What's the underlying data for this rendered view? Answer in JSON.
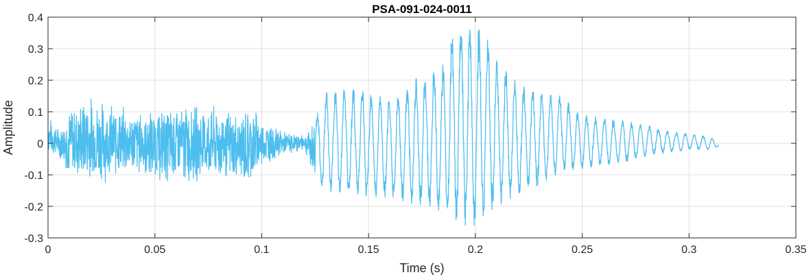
{
  "chart_data": {
    "type": "line",
    "title": "PSA-091-024-0011",
    "xlabel": "Time (s)",
    "ylabel": "Amplitude",
    "xlim": [
      0,
      0.35
    ],
    "ylim": [
      -0.3,
      0.4
    ],
    "grid": true,
    "xticks": [
      0,
      0.05,
      0.1,
      0.15,
      0.2,
      0.25,
      0.3,
      0.35
    ],
    "xtick_labels": [
      "0",
      "0.05",
      "0.1",
      "0.15",
      "0.2",
      "0.25",
      "0.3",
      "0.35"
    ],
    "yticks": [
      -0.3,
      -0.2,
      -0.1,
      0,
      0.1,
      0.2,
      0.3,
      0.4
    ],
    "ytick_labels": [
      "-0.3",
      "-0.2",
      "-0.1",
      "0",
      "0.1",
      "0.2",
      "0.3",
      "0.4"
    ],
    "series": [
      {
        "color": "#4dbeee",
        "x": [
          0.0,
          0.005,
          0.01,
          0.02,
          0.03,
          0.04,
          0.05,
          0.06,
          0.07,
          0.08,
          0.09,
          0.095,
          0.1,
          0.105,
          0.11,
          0.115,
          0.12,
          0.125,
          0.13,
          0.14,
          0.15,
          0.16,
          0.17,
          0.18,
          0.185,
          0.19,
          0.195,
          0.2,
          0.205,
          0.21,
          0.22,
          0.23,
          0.24,
          0.25,
          0.26,
          0.27,
          0.28,
          0.29,
          0.3,
          0.31,
          0.314
        ],
        "upper": [
          0.09,
          0.05,
          0.12,
          0.16,
          0.13,
          0.11,
          0.11,
          0.13,
          0.13,
          0.12,
          0.1,
          0.14,
          0.08,
          0.06,
          0.04,
          0.03,
          0.03,
          0.08,
          0.16,
          0.17,
          0.17,
          0.13,
          0.2,
          0.22,
          0.25,
          0.37,
          0.38,
          0.36,
          0.36,
          0.26,
          0.19,
          0.16,
          0.15,
          0.09,
          0.08,
          0.07,
          0.06,
          0.04,
          0.03,
          0.02,
          0.0
        ],
        "lower": [
          -0.03,
          -0.05,
          -0.11,
          -0.14,
          -0.12,
          -0.1,
          -0.12,
          -0.14,
          -0.13,
          -0.12,
          -0.13,
          -0.15,
          -0.08,
          -0.06,
          -0.04,
          -0.03,
          -0.02,
          -0.12,
          -0.15,
          -0.16,
          -0.17,
          -0.17,
          -0.19,
          -0.2,
          -0.23,
          -0.25,
          -0.26,
          -0.26,
          -0.23,
          -0.2,
          -0.16,
          -0.13,
          -0.09,
          -0.08,
          -0.07,
          -0.06,
          -0.04,
          -0.03,
          -0.02,
          -0.02,
          -0.01
        ]
      }
    ]
  }
}
